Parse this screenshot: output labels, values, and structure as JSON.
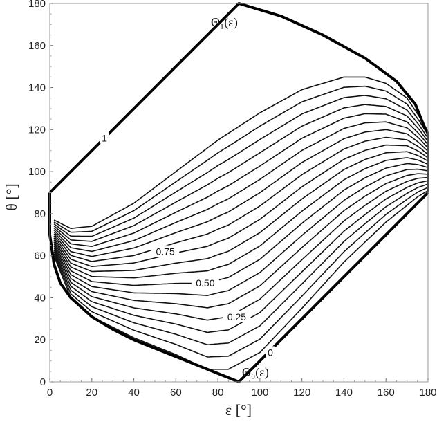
{
  "chart_data": {
    "type": "line",
    "xlabel": "ε [°]",
    "ylabel": "θ [°]",
    "xlim": [
      0,
      180
    ],
    "ylim": [
      0,
      180
    ],
    "xticks": [
      0,
      20,
      40,
      60,
      80,
      100,
      120,
      140,
      160,
      180
    ],
    "yticks": [
      0,
      20,
      40,
      60,
      80,
      100,
      120,
      140,
      160,
      180
    ],
    "grid": false,
    "boundaries": {
      "theta1": {
        "label": "Θ₁(ε)",
        "points": [
          [
            0,
            90
          ],
          [
            90,
            180
          ],
          [
            110,
            174
          ],
          [
            130,
            165
          ],
          [
            150,
            154
          ],
          [
            165,
            143
          ],
          [
            174,
            132
          ],
          [
            178,
            122
          ],
          [
            180,
            118
          ],
          [
            180,
            90
          ]
        ]
      },
      "theta0": {
        "label": "Θ₀(ε)",
        "points": [
          [
            0,
            90
          ],
          [
            0,
            70
          ],
          [
            2,
            56
          ],
          [
            5,
            47
          ],
          [
            10,
            40
          ],
          [
            20,
            31
          ],
          [
            30,
            25
          ],
          [
            40,
            20
          ],
          [
            50,
            16
          ],
          [
            60,
            12
          ],
          [
            70,
            8
          ],
          [
            80,
            4
          ],
          [
            90,
            0
          ],
          [
            180,
            90
          ]
        ]
      }
    },
    "contour_family": {
      "levels": [
        0.05,
        0.1,
        0.15,
        0.2,
        0.25,
        0.3,
        0.35,
        0.4,
        0.45,
        0.5,
        0.55,
        0.6,
        0.65,
        0.7,
        0.75,
        0.8,
        0.85,
        0.9,
        0.95
      ],
      "lowest": [
        [
          2,
          60
        ],
        [
          10,
          40
        ],
        [
          20,
          31
        ],
        [
          40,
          21
        ],
        [
          60,
          13
        ],
        [
          75,
          6
        ],
        [
          85,
          6
        ],
        [
          100,
          14
        ],
        [
          120,
          35
        ],
        [
          140,
          57
        ],
        [
          160,
          76
        ],
        [
          175,
          88
        ],
        [
          180,
          91
        ]
      ],
      "highest": [
        [
          2,
          77
        ],
        [
          10,
          73
        ],
        [
          20,
          74
        ],
        [
          40,
          85
        ],
        [
          60,
          100
        ],
        [
          80,
          115
        ],
        [
          100,
          128
        ],
        [
          120,
          139
        ],
        [
          140,
          145
        ],
        [
          150,
          145
        ],
        [
          160,
          142
        ],
        [
          170,
          135
        ],
        [
          176,
          126
        ],
        [
          180,
          119
        ]
      ]
    },
    "annotations": [
      {
        "text": "1",
        "x": 26,
        "y": 116
      },
      {
        "text": "0.75",
        "x": 55,
        "y": 62
      },
      {
        "text": "0.50",
        "x": 74,
        "y": 47
      },
      {
        "text": "0.25",
        "x": 89,
        "y": 31
      },
      {
        "text": "0",
        "x": 105,
        "y": 14
      }
    ]
  }
}
